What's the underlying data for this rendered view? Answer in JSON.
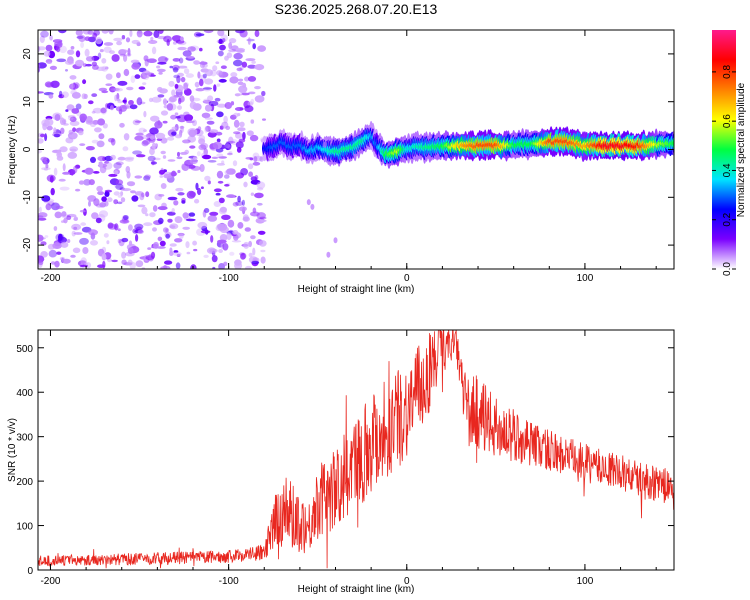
{
  "figure": {
    "title": "S236.2025.268.07.20.E13"
  },
  "chart_data": [
    {
      "type": "heatmap",
      "title": "S236.2025.268.07.20.E13",
      "xlabel": "Height of straight line (km)",
      "ylabel": "Frequency (Hz)",
      "xlim": [
        -207,
        150
      ],
      "ylim": [
        -25,
        25
      ],
      "x_ticks": [
        -200,
        -100,
        0,
        100
      ],
      "x_tick_labels": [
        "-200",
        "-100",
        "0",
        "100"
      ],
      "y_ticks": [
        -20,
        -10,
        0,
        10,
        20
      ],
      "y_tick_labels": [
        "-20",
        "-10",
        "0",
        "10",
        "20"
      ],
      "noise_region_x": [
        -207,
        -80
      ],
      "ridge_points": [
        {
          "x": -80,
          "y": 0.2,
          "amp": 0.25
        },
        {
          "x": -75,
          "y": 0.5,
          "amp": 0.3
        },
        {
          "x": -70,
          "y": 1.5,
          "amp": 0.3
        },
        {
          "x": -65,
          "y": 0.5,
          "amp": 0.3
        },
        {
          "x": -60,
          "y": 1.0,
          "amp": 0.3
        },
        {
          "x": -55,
          "y": -0.5,
          "amp": 0.35
        },
        {
          "x": -50,
          "y": 0.5,
          "amp": 0.35
        },
        {
          "x": -45,
          "y": 0.0,
          "amp": 0.4
        },
        {
          "x": -40,
          "y": -0.5,
          "amp": 0.45
        },
        {
          "x": -35,
          "y": 0.0,
          "amp": 0.45
        },
        {
          "x": -30,
          "y": 0.5,
          "amp": 0.45
        },
        {
          "x": -25,
          "y": 1.5,
          "amp": 0.45
        },
        {
          "x": -20,
          "y": 3.0,
          "amp": 0.35
        },
        {
          "x": -17,
          "y": 1.0,
          "amp": 0.3
        },
        {
          "x": -12,
          "y": -1.0,
          "amp": 0.5
        },
        {
          "x": -5,
          "y": -0.5,
          "amp": 0.6
        },
        {
          "x": 0,
          "y": 0.3,
          "amp": 0.4
        },
        {
          "x": 10,
          "y": 0.5,
          "amp": 0.45
        },
        {
          "x": 20,
          "y": 0.6,
          "amp": 0.5
        },
        {
          "x": 30,
          "y": 0.8,
          "amp": 0.7
        },
        {
          "x": 40,
          "y": 0.8,
          "amp": 0.8
        },
        {
          "x": 50,
          "y": 0.8,
          "amp": 0.8
        },
        {
          "x": 60,
          "y": 0.9,
          "amp": 0.5
        },
        {
          "x": 70,
          "y": 1.2,
          "amp": 0.5
        },
        {
          "x": 80,
          "y": 1.6,
          "amp": 0.8
        },
        {
          "x": 90,
          "y": 1.6,
          "amp": 0.8
        },
        {
          "x": 100,
          "y": 0.8,
          "amp": 0.7
        },
        {
          "x": 110,
          "y": 0.8,
          "amp": 0.9
        },
        {
          "x": 120,
          "y": 0.8,
          "amp": 0.9
        },
        {
          "x": 130,
          "y": 0.8,
          "amp": 0.85
        },
        {
          "x": 140,
          "y": 1.0,
          "amp": 0.6
        },
        {
          "x": 150,
          "y": 1.2,
          "amp": 0.5
        }
      ],
      "colorbar": {
        "label": "Normalized spectral amplitude",
        "range": [
          0.0,
          0.97
        ],
        "ticks": [
          0.0,
          0.2,
          0.4,
          0.6,
          0.8
        ],
        "tick_labels": [
          "0.0",
          "0.2",
          "0.4",
          "0.6",
          "0.8"
        ],
        "colors": [
          "#ffffff",
          "#7a00ff",
          "#0000ff",
          "#00e5ff",
          "#00ff40",
          "#ffff00",
          "#ff8000",
          "#ff0000",
          "#ff1a8c"
        ]
      }
    },
    {
      "type": "line",
      "xlabel": "Height of straight line (km)",
      "ylabel": "SNR (10 * v/v)",
      "xlim": [
        -207,
        150
      ],
      "ylim": [
        0,
        540
      ],
      "x_ticks": [
        -200,
        -100,
        0,
        100
      ],
      "x_tick_labels": [
        "-200",
        "-100",
        "0",
        "100"
      ],
      "y_ticks": [
        0,
        100,
        200,
        300,
        400,
        500
      ],
      "y_tick_labels": [
        "0",
        "100",
        "200",
        "300",
        "400",
        "500"
      ],
      "color": "#e8271f",
      "series": [
        {
          "name": "SNR",
          "x": [
            -207,
            -180,
            -150,
            -120,
            -100,
            -90,
            -80,
            -75,
            -70,
            -65,
            -60,
            -55,
            -50,
            -45,
            -40,
            -35,
            -30,
            -25,
            -20,
            -15,
            -10,
            -5,
            0,
            5,
            10,
            15,
            20,
            25,
            28,
            32,
            35,
            40,
            45,
            50,
            55,
            60,
            70,
            80,
            90,
            100,
            110,
            120,
            130,
            140,
            150
          ],
          "y": [
            20,
            22,
            25,
            28,
            30,
            35,
            40,
            90,
            140,
            120,
            110,
            95,
            150,
            170,
            180,
            210,
            230,
            260,
            290,
            310,
            320,
            340,
            360,
            400,
            420,
            470,
            500,
            510,
            500,
            400,
            350,
            360,
            330,
            320,
            310,
            300,
            285,
            270,
            255,
            240,
            230,
            220,
            205,
            195,
            185
          ],
          "noise": [
            12,
            12,
            14,
            14,
            14,
            16,
            18,
            60,
            90,
            80,
            70,
            60,
            80,
            90,
            90,
            100,
            110,
            110,
            120,
            120,
            120,
            110,
            110,
            100,
            100,
            90,
            60,
            40,
            40,
            60,
            80,
            90,
            80,
            70,
            60,
            60,
            50,
            50,
            45,
            45,
            40,
            40,
            40,
            40,
            40
          ]
        }
      ]
    }
  ]
}
